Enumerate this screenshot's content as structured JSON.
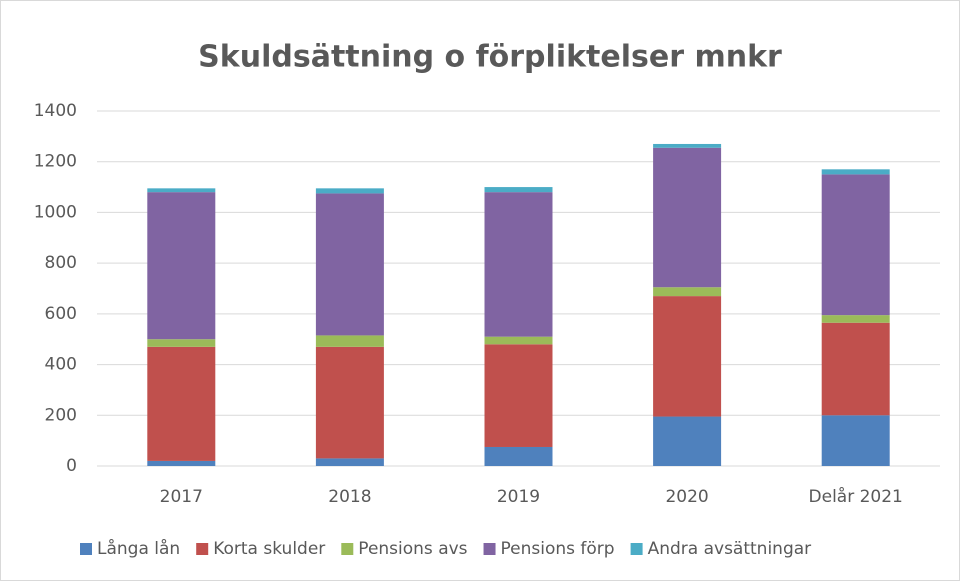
{
  "chart_data": {
    "type": "stacked_bar",
    "title": "Skuldsättning o förpliktelser mnkr",
    "categories": [
      "2017",
      "2018",
      "2019",
      "2020",
      "Delår 2021"
    ],
    "series": [
      {
        "name": "Långa lån",
        "color": "#4f81bd",
        "values": [
          20,
          30,
          75,
          195,
          200
        ]
      },
      {
        "name": "Korta skulder",
        "color": "#c0504d",
        "values": [
          450,
          440,
          405,
          475,
          365
        ]
      },
      {
        "name": "Pensions avs",
        "color": "#9bbb59",
        "values": [
          30,
          45,
          30,
          35,
          30
        ]
      },
      {
        "name": "Pensions förp",
        "color": "#8064a2",
        "values": [
          580,
          560,
          570,
          550,
          555
        ]
      },
      {
        "name": "Andra avsättningar",
        "color": "#4bacc6",
        "values": [
          15,
          20,
          20,
          15,
          20
        ]
      }
    ],
    "ylim": [
      0,
      1400
    ],
    "yticks": [
      0,
      200,
      400,
      600,
      800,
      1000,
      1200,
      1400
    ],
    "grid": true,
    "legend": "bottom"
  }
}
